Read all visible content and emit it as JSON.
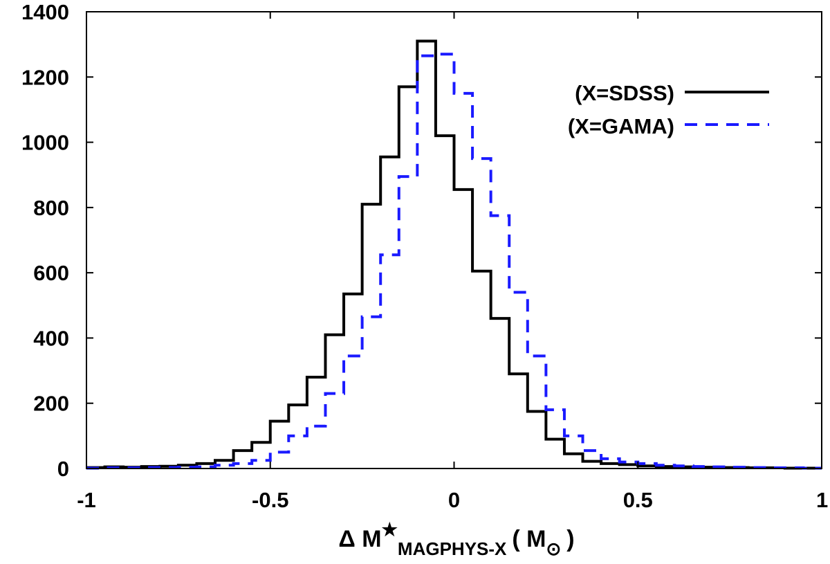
{
  "chart_data": {
    "type": "histogram",
    "xlabel": {
      "prefix": "Δ M",
      "star": "★",
      "subscript": "MAGPHYS-X",
      "open_paren": "( M",
      "sun": "⊙",
      "close_paren": ")"
    },
    "ylabel": "",
    "xlim": [
      -1,
      1
    ],
    "ylim": [
      0,
      1400
    ],
    "xticks": [
      "-1",
      "-0.5",
      "0",
      "0.5",
      "1"
    ],
    "xtick_values": [
      -1,
      -0.5,
      0,
      0.5,
      1
    ],
    "yticks": [
      "0",
      "200",
      "400",
      "600",
      "800",
      "1000",
      "1200",
      "1400"
    ],
    "ytick_values": [
      0,
      200,
      400,
      600,
      800,
      1000,
      1200,
      1400
    ],
    "bin_edges": [
      -1.0,
      -0.95,
      -0.9,
      -0.85,
      -0.8,
      -0.75,
      -0.7,
      -0.65,
      -0.6,
      -0.55,
      -0.5,
      -0.45,
      -0.4,
      -0.35,
      -0.3,
      -0.25,
      -0.2,
      -0.15,
      -0.1,
      -0.05,
      0.0,
      0.05,
      0.1,
      0.15,
      0.2,
      0.25,
      0.3,
      0.35,
      0.4,
      0.45,
      0.5,
      0.55,
      0.6,
      0.65,
      0.7,
      0.75,
      0.8,
      0.85,
      0.9,
      0.95,
      1.0
    ],
    "series": [
      {
        "name": "SDSS",
        "label": "(X=SDSS)",
        "color": "#000000",
        "dash": "solid",
        "values": [
          3,
          5,
          4,
          6,
          7,
          10,
          15,
          25,
          55,
          80,
          145,
          195,
          280,
          410,
          535,
          810,
          955,
          1170,
          1310,
          1020,
          855,
          605,
          460,
          290,
          175,
          90,
          45,
          22,
          15,
          12,
          8,
          6,
          5,
          4,
          3,
          3,
          2,
          2,
          1,
          1
        ]
      },
      {
        "name": "GAMA",
        "label": "(X=GAMA)",
        "color": "#1a1aff",
        "dash": "dashed",
        "values": [
          1,
          2,
          2,
          3,
          3,
          4,
          5,
          10,
          15,
          25,
          50,
          100,
          130,
          230,
          345,
          465,
          655,
          895,
          1265,
          1270,
          1150,
          950,
          775,
          540,
          345,
          180,
          100,
          55,
          30,
          20,
          15,
          10,
          8,
          6,
          5,
          4,
          3,
          2,
          2,
          1
        ]
      }
    ],
    "legend_position": "top-right"
  }
}
